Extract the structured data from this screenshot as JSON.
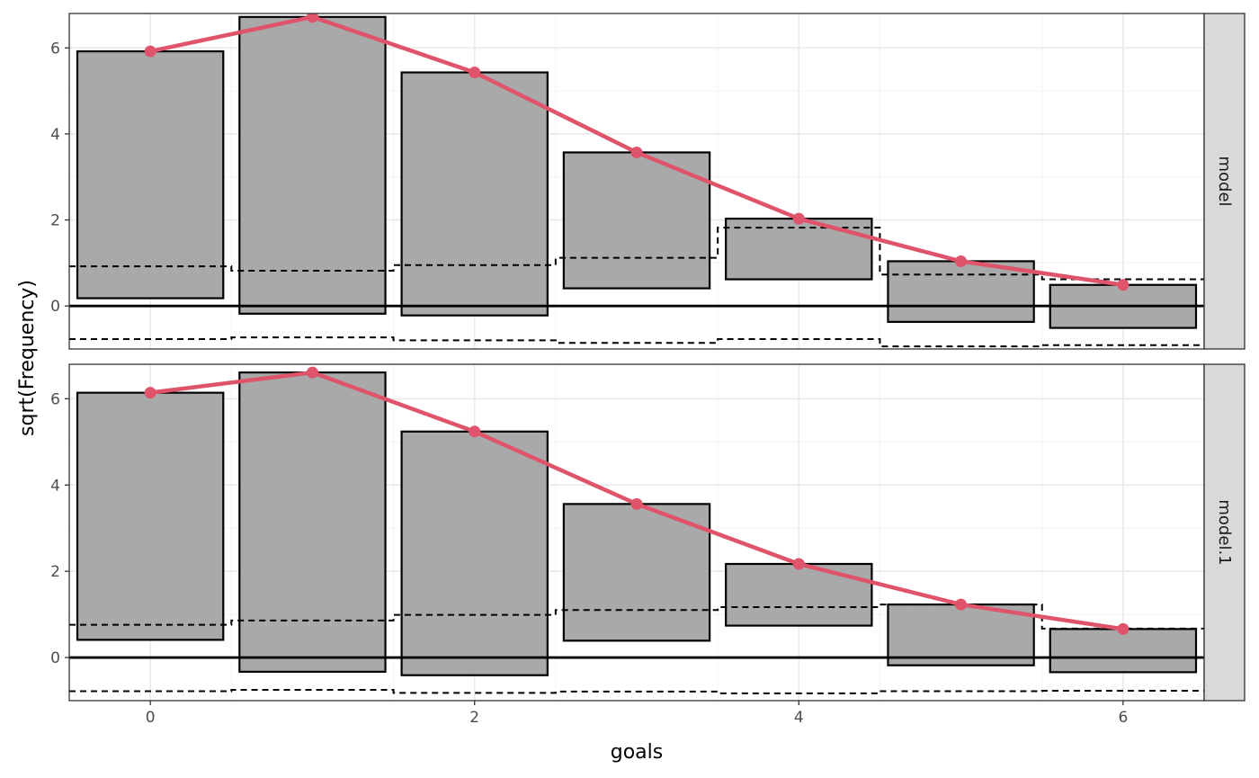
{
  "chart_data": {
    "type": "rootogram",
    "xlabel": "goals",
    "ylabel": "sqrt(Frequency)",
    "x_ticks": [
      0,
      2,
      4,
      6
    ],
    "y_ticks": [
      0,
      2,
      4,
      6
    ],
    "xlim": [
      -0.5,
      6.5
    ],
    "ylim": [
      -1.0,
      6.8
    ],
    "colors": {
      "bar_fill": "#a9a9a9",
      "line": "#df536b",
      "strip_fill": "#d9d9d9",
      "grid_major": "#ebebeb",
      "grid_minor": "#f5f5f5",
      "panel_border": "#333333"
    },
    "panels": [
      {
        "label": "model",
        "x": [
          0,
          1,
          2,
          3,
          4,
          5,
          6
        ],
        "expected": [
          5.92,
          6.72,
          5.43,
          3.57,
          2.03,
          1.04,
          0.49
        ],
        "bar_bottom": [
          0.18,
          -0.18,
          -0.22,
          0.41,
          0.62,
          -0.37,
          -0.51
        ],
        "ci_upper": [
          0.92,
          0.82,
          0.95,
          1.12,
          1.82,
          0.73,
          0.62
        ],
        "ci_lower": [
          -0.77,
          -0.73,
          -0.8,
          -0.86,
          -0.77,
          -0.94,
          -0.91
        ]
      },
      {
        "label": "model.1",
        "x": [
          0,
          1,
          2,
          3,
          4,
          5,
          6
        ],
        "expected": [
          6.14,
          6.61,
          5.24,
          3.56,
          2.17,
          1.23,
          0.66
        ],
        "bar_bottom": [
          0.41,
          -0.33,
          -0.41,
          0.39,
          0.74,
          -0.18,
          -0.34
        ],
        "ci_upper": [
          0.76,
          0.86,
          0.99,
          1.1,
          1.17,
          1.23,
          0.67
        ],
        "ci_lower": [
          -0.78,
          -0.75,
          -0.82,
          -0.79,
          -0.83,
          -0.78,
          -0.77
        ]
      }
    ]
  }
}
